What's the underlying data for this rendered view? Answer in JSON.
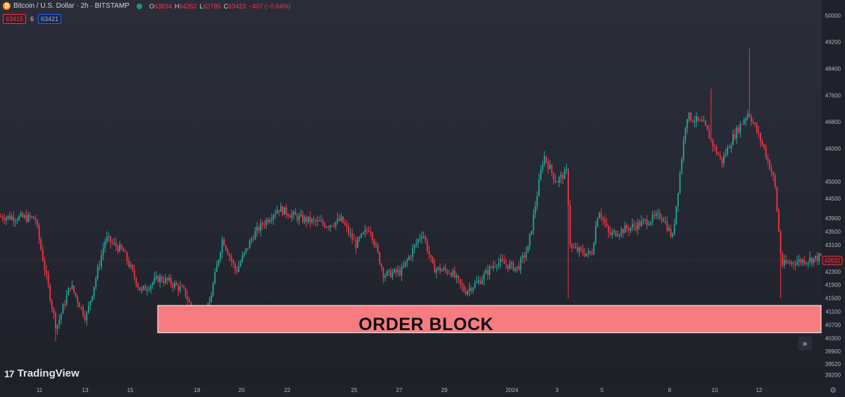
{
  "header": {
    "symbol_title": "Bitcoin / U.S. Dollar · 2h · BITSTAMP",
    "ohlc": {
      "o_label": "O",
      "o_value": "63834",
      "h_label": "H",
      "h_value": "64262",
      "l_label": "L",
      "l_value": "62785",
      "c_label": "C",
      "c_value": "63423",
      "change": "−407 (−0.64%)"
    },
    "sell_price": "63415",
    "spread": "6",
    "buy_price": "63421"
  },
  "overlay": {
    "order_block_label": "ORDER BLOCK",
    "order_block_top": 41280,
    "order_block_bottom": 40460,
    "order_block_color": "#f77c7f"
  },
  "branding": {
    "logo_text": "TradingView"
  },
  "controls": {
    "scroll_icon": "double-chevron-right-icon",
    "settings_icon": "gear-icon"
  },
  "colors": {
    "up": "#26a69a",
    "down": "#f23645",
    "background": "#262a35"
  },
  "chart_data": {
    "type": "candlestick",
    "x_ticks": [
      "11",
      "13",
      "15",
      "18",
      "20",
      "22",
      "25",
      "27",
      "29",
      "2024",
      "3",
      "5",
      "8",
      "10",
      "12"
    ],
    "y_ticks": [
      "50000",
      "49200",
      "48400",
      "47600",
      "46800",
      "46000",
      "45000",
      "44500",
      "43900",
      "43500",
      "43100",
      "42300",
      "41900",
      "41500",
      "41100",
      "40700",
      "40300",
      "39900",
      "39520",
      "39200"
    ],
    "last_price_label": "42632",
    "ylim": [
      39100,
      50250
    ],
    "grid": false,
    "trend_points": [
      [
        0,
        43950
      ],
      [
        50,
        43900
      ],
      [
        66,
        42100
      ],
      [
        80,
        40600
      ],
      [
        100,
        41900
      ],
      [
        122,
        40900
      ],
      [
        150,
        43300
      ],
      [
        175,
        42900
      ],
      [
        200,
        41700
      ],
      [
        225,
        42100
      ],
      [
        240,
        42000
      ],
      [
        262,
        41700
      ],
      [
        280,
        40750
      ],
      [
        293,
        40900
      ],
      [
        316,
        43300
      ],
      [
        335,
        42300
      ],
      [
        360,
        43400
      ],
      [
        372,
        43700
      ],
      [
        395,
        44200
      ],
      [
        425,
        43900
      ],
      [
        465,
        43700
      ],
      [
        485,
        43850
      ],
      [
        505,
        43100
      ],
      [
        525,
        43650
      ],
      [
        545,
        42200
      ],
      [
        570,
        42300
      ],
      [
        600,
        43500
      ],
      [
        615,
        42400
      ],
      [
        640,
        42300
      ],
      [
        660,
        41700
      ],
      [
        680,
        42000
      ],
      [
        705,
        42600
      ],
      [
        735,
        42400
      ],
      [
        750,
        43000
      ],
      [
        772,
        45800
      ],
      [
        790,
        45000
      ],
      [
        805,
        45300
      ],
      [
        810,
        43000
      ],
      [
        840,
        42800
      ],
      [
        850,
        44200
      ],
      [
        865,
        43400
      ],
      [
        905,
        43700
      ],
      [
        940,
        44000
      ],
      [
        955,
        43300
      ],
      [
        975,
        47000
      ],
      [
        1000,
        46700
      ],
      [
        1015,
        46000
      ],
      [
        1025,
        45600
      ],
      [
        1040,
        46300
      ],
      [
        1063,
        47100
      ],
      [
        1085,
        46000
      ],
      [
        1100,
        45000
      ],
      [
        1110,
        42500
      ],
      [
        1130,
        42600
      ],
      [
        1160,
        42700
      ],
      [
        1166,
        42750
      ]
    ]
  }
}
